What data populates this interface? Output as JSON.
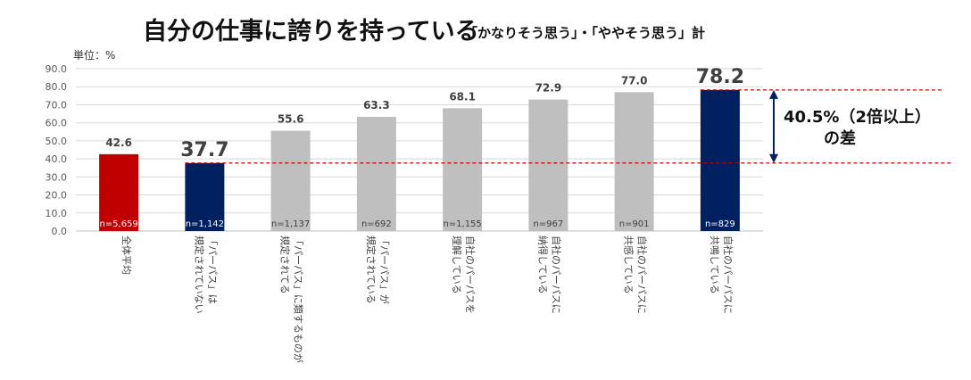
{
  "title": "自分の仕事に誇りを持っている",
  "subtitle": "「かなりそう思う」・「ややそう思う」計",
  "unit_label": "単位：%",
  "annotation": {
    "line1": "40.5%（2倍以上）",
    "line2": "の差"
  },
  "colors": {
    "red": "#c00000",
    "navy": "#002060",
    "gray": "#bfbfbf",
    "dash": "#c00000",
    "arrow": "#002060"
  },
  "chart_data": {
    "type": "bar",
    "ylim": [
      0,
      90
    ],
    "yticks": [
      "0.0",
      "10.0",
      "20.0",
      "30.0",
      "40.0",
      "50.0",
      "60.0",
      "70.0",
      "80.0",
      "90.0"
    ],
    "grid": true,
    "reference_lines": [
      37.7,
      78.2
    ],
    "bars": [
      {
        "value": 42.6,
        "label": "42.6",
        "n": "n=5,659",
        "color": "red",
        "category": [
          "全体平均"
        ]
      },
      {
        "value": 37.7,
        "label": "37.7",
        "n": "n=1,142",
        "color": "navy",
        "big": true,
        "category": [
          "「パーパス」は",
          "規定されていない"
        ]
      },
      {
        "value": 55.6,
        "label": "55.6",
        "n": "n=1,137",
        "color": "gray",
        "category": [
          "「パーパス」に類するものが",
          "規定されてる"
        ]
      },
      {
        "value": 63.3,
        "label": "63.3",
        "n": "n=692",
        "color": "gray",
        "category": [
          "「パーパス」が",
          "規定されている"
        ]
      },
      {
        "value": 68.1,
        "label": "68.1",
        "n": "n=1,155",
        "color": "gray",
        "category": [
          "自社のパーパスを",
          "理解している"
        ]
      },
      {
        "value": 72.9,
        "label": "72.9",
        "n": "n=967",
        "color": "gray",
        "category": [
          "自社のパーパスに",
          "納得している"
        ]
      },
      {
        "value": 77.0,
        "label": "77.0",
        "n": "n=901",
        "color": "gray",
        "category": [
          "自社のパーパスに",
          "共感している"
        ]
      },
      {
        "value": 78.2,
        "label": "78.2",
        "n": "n=829",
        "color": "navy",
        "big": true,
        "category": [
          "自社のパーパスに",
          "共鳴している"
        ]
      }
    ]
  }
}
